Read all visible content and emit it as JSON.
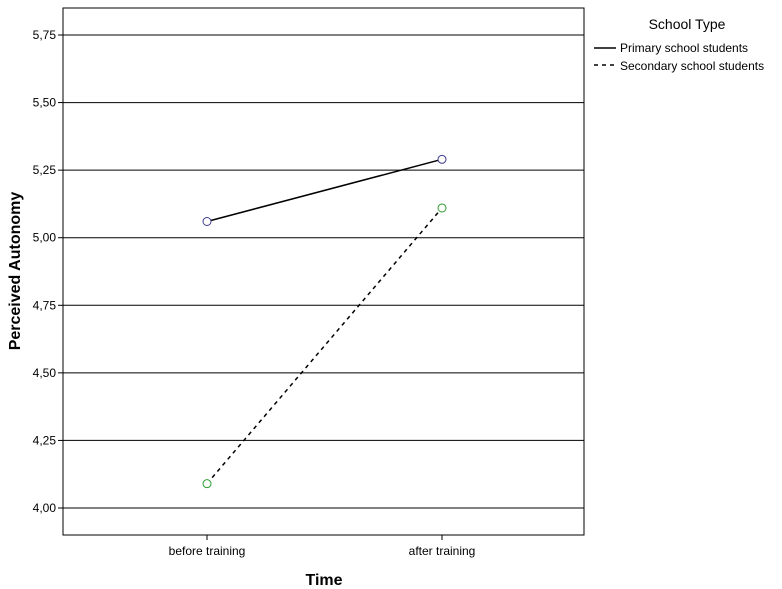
{
  "chart_data": {
    "type": "line",
    "xlabel": "Time",
    "ylabel": "Perceived Autonomy",
    "categories": [
      "before training",
      "after training"
    ],
    "ylim": [
      3.9,
      5.85
    ],
    "y_ticks": [
      "4,00",
      "4,25",
      "4,50",
      "4,75",
      "5,00",
      "5,25",
      "5,50",
      "5,75"
    ],
    "y_tick_values": [
      4.0,
      4.25,
      4.5,
      4.75,
      5.0,
      5.25,
      5.5,
      5.75
    ],
    "grid": "horizontal",
    "legend": {
      "title": "School Type",
      "placement": "right",
      "entries": [
        "Primary school students",
        "Secondary school students"
      ]
    },
    "series": [
      {
        "name": "Primary school students",
        "values": [
          5.06,
          5.29
        ],
        "line_style": "solid",
        "marker": "circle",
        "marker_color": "#3b3b8f"
      },
      {
        "name": "Secondary school students",
        "values": [
          4.09,
          5.11
        ],
        "line_style": "dashed",
        "marker": "circle",
        "marker_color": "#2e9e2e"
      }
    ]
  }
}
